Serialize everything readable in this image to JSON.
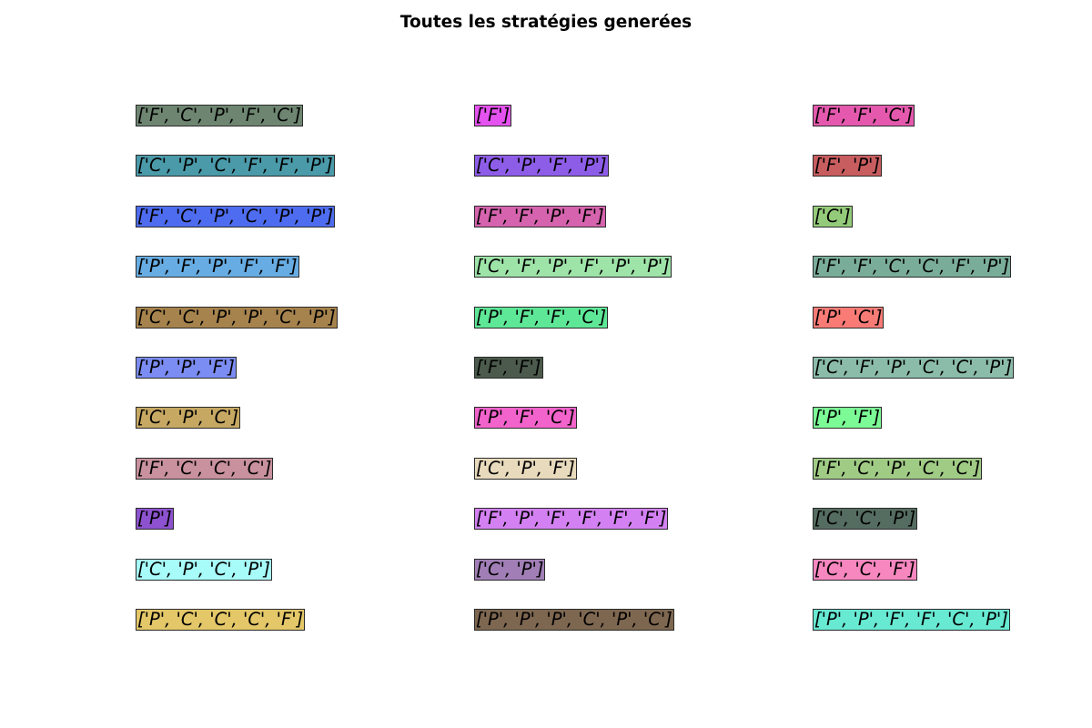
{
  "title": "Toutes les stratégies generées",
  "chart_data": {
    "type": "table",
    "title": "Toutes les stratégies generées",
    "columns": [
      [
        {
          "text": "['F', 'C', 'P', 'F', 'C']",
          "color": "#6e8671"
        },
        {
          "text": "['C', 'P', 'C', 'F', 'F', 'P']",
          "color": "#4a9aa9"
        },
        {
          "text": "['F', 'C', 'P', 'C', 'P', 'P']",
          "color": "#4e6cef"
        },
        {
          "text": "['P', 'F', 'P', 'F', 'F']",
          "color": "#67ace2"
        },
        {
          "text": "['C', 'C', 'P', 'P', 'C', 'P']",
          "color": "#a6834d"
        },
        {
          "text": "['P', 'P', 'F']",
          "color": "#7b8cf2"
        },
        {
          "text": "['C', 'P', 'C']",
          "color": "#c6a863"
        },
        {
          "text": "['F', 'C', 'C', 'C']",
          "color": "#c8919d"
        },
        {
          "text": "['P']",
          "color": "#8d52cf"
        },
        {
          "text": "['C', 'P', 'C', 'P']",
          "color": "#a7fbf9"
        },
        {
          "text": "['P', 'C', 'C', 'C', 'F']",
          "color": "#e3c768"
        }
      ],
      [
        {
          "text": "['F']",
          "color": "#e452ef"
        },
        {
          "text": "['C', 'P', 'F', 'P']",
          "color": "#8e5de8"
        },
        {
          "text": "['F', 'F', 'P', 'F']",
          "color": "#d563ad"
        },
        {
          "text": "['C', 'F', 'P', 'F', 'P', 'P']",
          "color": "#9ee3a8"
        },
        {
          "text": "['P', 'F', 'F', 'C']",
          "color": "#5ee797"
        },
        {
          "text": "['F', 'F']",
          "color": "#4b5a4c"
        },
        {
          "text": "['P', 'F', 'C']",
          "color": "#f263cb"
        },
        {
          "text": "['C', 'P', 'F']",
          "color": "#e8dabc"
        },
        {
          "text": "['F', 'P', 'F', 'F', 'F', 'F']",
          "color": "#d381f2"
        },
        {
          "text": "['C', 'P']",
          "color": "#a17fb6"
        },
        {
          "text": "['P', 'P', 'P', 'C', 'P', 'C']",
          "color": "#7e6750"
        }
      ],
      [
        {
          "text": "['F', 'F', 'C']",
          "color": "#e459ad"
        },
        {
          "text": "['F', 'P']",
          "color": "#c85d5f"
        },
        {
          "text": "['C']",
          "color": "#94cb7a"
        },
        {
          "text": "['F', 'F', 'C', 'C', 'F', 'P']",
          "color": "#7aac9a"
        },
        {
          "text": "['P', 'C']",
          "color": "#f97b76"
        },
        {
          "text": "['C', 'F', 'P', 'C', 'C', 'P']",
          "color": "#8bbcaa"
        },
        {
          "text": "['P', 'F']",
          "color": "#7cfa96"
        },
        {
          "text": "['F', 'C', 'P', 'C', 'C']",
          "color": "#a0cb85"
        },
        {
          "text": "['C', 'C', 'P']",
          "color": "#556c60"
        },
        {
          "text": "['C', 'C', 'F']",
          "color": "#f687bf"
        },
        {
          "text": "['P', 'P', 'F', 'F', 'C', 'P']",
          "color": "#67e9d2"
        }
      ]
    ]
  }
}
